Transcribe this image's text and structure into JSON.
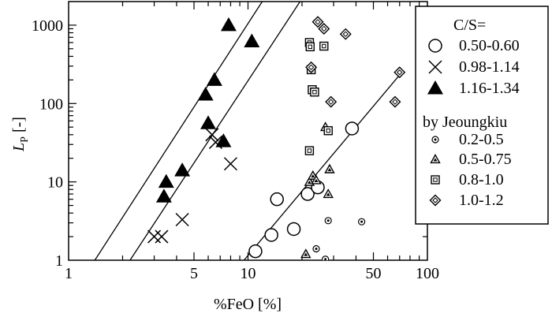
{
  "chart_data": {
    "type": "scatter",
    "title": "",
    "xlabel": "%FeO [%]",
    "ylabel_main": "L",
    "ylabel_sub": "P",
    "ylabel_unit": " [-]",
    "x_scale": "log",
    "y_scale": "log",
    "xlim": [
      1,
      100
    ],
    "ylim": [
      1,
      2000
    ],
    "x_ticks": [
      {
        "value": 1,
        "label": "1"
      },
      {
        "value": 5,
        "label": "5"
      },
      {
        "value": 10,
        "label": "10"
      },
      {
        "value": 50,
        "label": "50"
      },
      {
        "value": 100,
        "label": "100"
      }
    ],
    "y_ticks": [
      {
        "value": 1,
        "label": "1"
      },
      {
        "value": 10,
        "label": "10"
      },
      {
        "value": 100,
        "label": "100"
      },
      {
        "value": 1000,
        "label": "1000"
      }
    ],
    "grid": false,
    "legend_title": "C/S=",
    "legend_group_label": "by Jeoungkiu",
    "legend_position": "top-right",
    "series": [
      {
        "name": "0.50-0.60",
        "marker": "circle-open",
        "points": [
          [
            11,
            1.3
          ],
          [
            13.5,
            2.1
          ],
          [
            14.5,
            6
          ],
          [
            18,
            2.5
          ],
          [
            21.5,
            7
          ],
          [
            24.5,
            8.5
          ],
          [
            38,
            48
          ]
        ]
      },
      {
        "name": "0.98-1.14",
        "marker": "x",
        "points": [
          [
            3.0,
            2.0
          ],
          [
            3.3,
            2.0
          ],
          [
            4.3,
            3.3
          ],
          [
            6.3,
            40
          ],
          [
            6.6,
            32
          ],
          [
            8.0,
            17
          ]
        ]
      },
      {
        "name": "1.16-1.34",
        "marker": "triangle-filled",
        "points": [
          [
            3.4,
            6.5
          ],
          [
            3.5,
            10
          ],
          [
            4.3,
            14
          ],
          [
            5.8,
            130
          ],
          [
            6.0,
            56
          ],
          [
            6.5,
            200
          ],
          [
            7.3,
            33
          ],
          [
            7.8,
            1000
          ],
          [
            10.5,
            620
          ]
        ]
      },
      {
        "name": "0.2-0.5",
        "marker": "circle-dot",
        "points": [
          [
            24,
            1.4
          ],
          [
            27,
            1.03
          ],
          [
            28,
            3.2
          ],
          [
            43,
            3.1
          ]
        ]
      },
      {
        "name": "0.5-0.75",
        "marker": "triangle-dot",
        "points": [
          [
            21,
            1.2
          ],
          [
            22,
            10
          ],
          [
            23,
            12
          ],
          [
            24,
            10.5
          ],
          [
            27,
            50
          ],
          [
            28,
            7
          ],
          [
            28.5,
            14.5
          ]
        ]
      },
      {
        "name": "0.8-1.0",
        "marker": "square-dot",
        "points": [
          [
            22,
            600
          ],
          [
            22.2,
            530
          ],
          [
            22.5,
            270
          ],
          [
            22.8,
            150
          ],
          [
            23.5,
            140
          ],
          [
            26.5,
            540
          ],
          [
            22,
            25
          ],
          [
            28,
            45
          ]
        ]
      },
      {
        "name": "1.0-1.2",
        "marker": "diamond-dot",
        "points": [
          [
            24.5,
            1100
          ],
          [
            26.5,
            900
          ],
          [
            22.5,
            290
          ],
          [
            29,
            105
          ],
          [
            35,
            770
          ],
          [
            66,
            105
          ],
          [
            70,
            250
          ]
        ]
      }
    ],
    "fit_lines": [
      {
        "points": [
          [
            1.4,
            1
          ],
          [
            12,
            2000
          ]
        ]
      },
      {
        "points": [
          [
            2.2,
            1
          ],
          [
            19.5,
            2000
          ]
        ]
      },
      {
        "points": [
          [
            9.5,
            1
          ],
          [
            72,
            250
          ]
        ]
      }
    ]
  }
}
